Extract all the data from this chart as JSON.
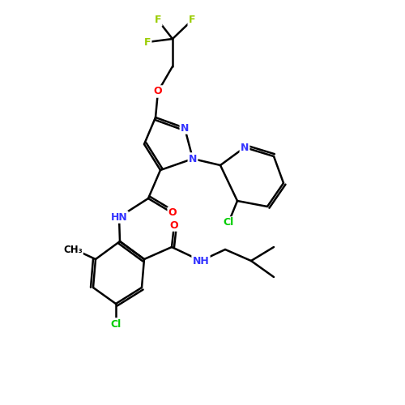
{
  "background_color": "#ffffff",
  "bond_color": "#000000",
  "atom_colors": {
    "N": "#3333ff",
    "O": "#ff0000",
    "Cl": "#00cc00",
    "F": "#99cc00",
    "C": "#000000"
  }
}
